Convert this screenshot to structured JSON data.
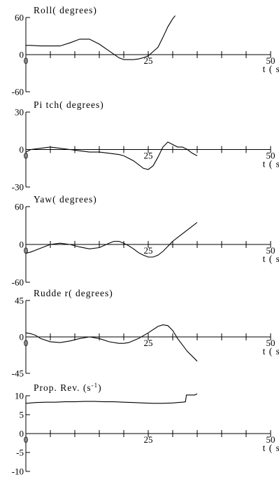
{
  "chart_data": [
    {
      "type": "line",
      "title": "Roll( degrees)",
      "xlabel": "t ( s)",
      "ylim": [
        -60,
        60
      ],
      "yticks": [
        60,
        0,
        -60
      ],
      "ytick_labels": [
        "60",
        "0",
        "-60"
      ],
      "xlim": [
        0,
        50
      ],
      "xticks": [
        0,
        25,
        50
      ],
      "xtick_labels": [
        "0",
        "25",
        "50"
      ],
      "series": [
        {
          "x": [
            0,
            1,
            3,
            5,
            7,
            9,
            11,
            13,
            15,
            17,
            19,
            20,
            21,
            22,
            23,
            24,
            25,
            26,
            27,
            28,
            29,
            30,
            30.5
          ],
          "y": [
            15,
            15,
            14,
            14,
            14,
            19,
            25,
            25,
            17,
            6,
            -5,
            -8,
            -8,
            -8,
            -7,
            -5,
            -2,
            5,
            12,
            28,
            45,
            58,
            63
          ]
        }
      ]
    },
    {
      "type": "line",
      "title": "Pi tch( degrees)",
      "xlabel": "t ( s)",
      "ylim": [
        -30,
        30
      ],
      "yticks": [
        30,
        0,
        -30
      ],
      "ytick_labels": [
        "30",
        "0",
        "-30"
      ],
      "xlim": [
        0,
        50
      ],
      "xticks": [
        0,
        25,
        50
      ],
      "xtick_labels": [
        "0",
        "25",
        "50"
      ],
      "series": [
        {
          "x": [
            0,
            1,
            3,
            5,
            7,
            9,
            11,
            13,
            15,
            17,
            19,
            20,
            21,
            22,
            23,
            24,
            25,
            26,
            27,
            28,
            29,
            30,
            31,
            32,
            33,
            34,
            35
          ],
          "y": [
            -2,
            0,
            1,
            2,
            1,
            0,
            -1,
            -2,
            -2,
            -3,
            -4,
            -5,
            -7,
            -9,
            -12,
            -15,
            -16,
            -13,
            -6,
            2,
            6,
            4,
            2,
            2,
            0,
            -3,
            -5
          ]
        }
      ]
    },
    {
      "type": "line",
      "title": "Yaw( degrees)",
      "xlabel": "t ( s)",
      "ylim": [
        -60,
        60
      ],
      "yticks": [
        60,
        0,
        -60
      ],
      "ytick_labels": [
        "60",
        "0",
        "-60"
      ],
      "xlim": [
        0,
        50
      ],
      "xticks": [
        0,
        25,
        50
      ],
      "xtick_labels": [
        "0",
        "25",
        "50"
      ],
      "series": [
        {
          "x": [
            0,
            1,
            2,
            3,
            5,
            7,
            9,
            11,
            13,
            15,
            17,
            18,
            19,
            20,
            21,
            22,
            23,
            24,
            25,
            26,
            27,
            28,
            29,
            30,
            31,
            32,
            33,
            34,
            35
          ],
          "y": [
            -14,
            -12,
            -9,
            -6,
            0,
            2,
            0,
            -4,
            -7,
            -5,
            2,
            5,
            5,
            2,
            -2,
            -7,
            -13,
            -17,
            -20,
            -20,
            -17,
            -11,
            -3,
            5,
            11,
            17,
            23,
            29,
            35
          ]
        }
      ]
    },
    {
      "type": "line",
      "title": "Rudde r( degrees)",
      "xlabel": "t ( s)",
      "ylim": [
        -45,
        45
      ],
      "yticks": [
        45,
        0,
        -45
      ],
      "ytick_labels": [
        "45",
        "0",
        "-45"
      ],
      "xlim": [
        0,
        50
      ],
      "xticks": [
        0,
        25,
        50
      ],
      "xtick_labels": [
        "0",
        "25",
        "50"
      ],
      "series": [
        {
          "x": [
            0,
            1,
            2,
            3,
            5,
            7,
            9,
            11,
            13,
            15,
            17,
            19,
            20,
            21,
            23,
            25,
            26,
            27,
            28,
            29,
            30,
            31,
            32,
            33,
            34,
            35
          ],
          "y": [
            5,
            4,
            2,
            -2,
            -6,
            -7,
            -5,
            -2,
            0,
            -2,
            -6,
            -8,
            -8,
            -7,
            -2,
            5,
            9,
            13,
            15,
            14,
            8,
            -2,
            -10,
            -18,
            -24,
            -30
          ]
        }
      ]
    },
    {
      "type": "line",
      "title": "Prop.  Rev. (s",
      "title_sup": "-1",
      "title_end": ")",
      "ylim": [
        -10,
        10
      ],
      "yticks": [
        10,
        5,
        0,
        -5,
        -10
      ],
      "ytick_labels": [
        "10",
        "5",
        "0",
        "-5",
        "-10"
      ],
      "xlabel": "t ( s)",
      "xlim": [
        0,
        50
      ],
      "xticks": [
        0,
        25,
        50
      ],
      "xtick_labels": [
        "0",
        "25",
        "50"
      ],
      "series": [
        {
          "x": [
            0,
            2,
            4,
            6,
            8,
            10,
            12,
            14,
            16,
            18,
            20,
            22,
            24,
            26,
            28,
            30,
            31,
            32,
            32.6,
            32.8,
            34.5,
            35
          ],
          "y": [
            8,
            8.2,
            8.3,
            8.3,
            8.4,
            8.4,
            8.5,
            8.5,
            8.4,
            8.4,
            8.3,
            8.2,
            8.1,
            8.0,
            8.0,
            8.1,
            8.2,
            8.3,
            8.4,
            10.2,
            10.2,
            10.5
          ]
        }
      ]
    }
  ]
}
